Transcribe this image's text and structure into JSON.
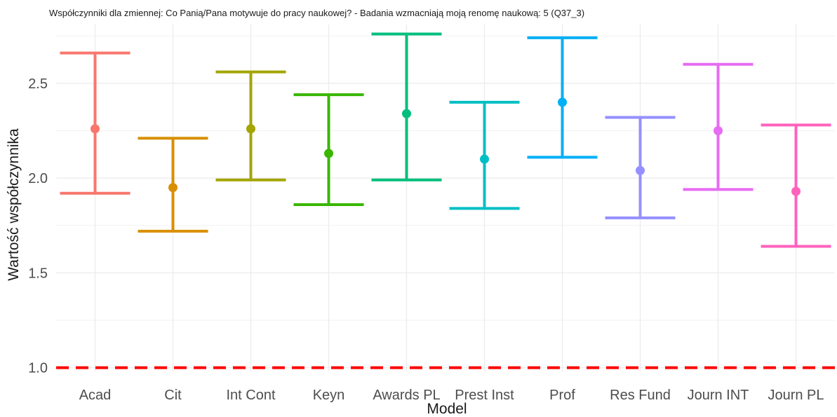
{
  "chart_data": {
    "type": "errorbar",
    "title": "Współczynniki dla zmiennej: Co Panią/Pana motywuje do pracy naukowej? - Badania wzmacniają moją renomę naukową: 5 (Q37_3)",
    "xlabel": "Model",
    "ylabel": "Wartość współczynnika",
    "ylim": [
      0.98,
      2.81
    ],
    "yticks": [
      1.0,
      1.5,
      2.0,
      2.5
    ],
    "ytick_labels": [
      "1.0",
      "1.5",
      "2.0",
      "2.5"
    ],
    "grid": true,
    "legend": "none",
    "reference_line": {
      "y": 1.0,
      "color": "#ff0000",
      "style": "dashed"
    },
    "categories": [
      "Acad",
      "Cit",
      "Int Cont",
      "Keyn",
      "Awards PL",
      "Prest Inst",
      "Prof",
      "Res Fund",
      "Journ INT",
      "Journ PL"
    ],
    "estimate": [
      2.26,
      1.95,
      2.26,
      2.13,
      2.34,
      2.1,
      2.4,
      2.04,
      2.25,
      1.93
    ],
    "lower": [
      1.92,
      1.72,
      1.99,
      1.86,
      1.99,
      1.84,
      2.11,
      1.79,
      1.94,
      1.64
    ],
    "upper": [
      2.66,
      2.21,
      2.56,
      2.44,
      2.76,
      2.4,
      2.74,
      2.32,
      2.6,
      2.28
    ],
    "colors": [
      "#F8766D",
      "#D89000",
      "#A3A500",
      "#39B600",
      "#00BF7D",
      "#00BFC4",
      "#00B0F6",
      "#9590FF",
      "#E76BF3",
      "#FF62BC"
    ]
  }
}
